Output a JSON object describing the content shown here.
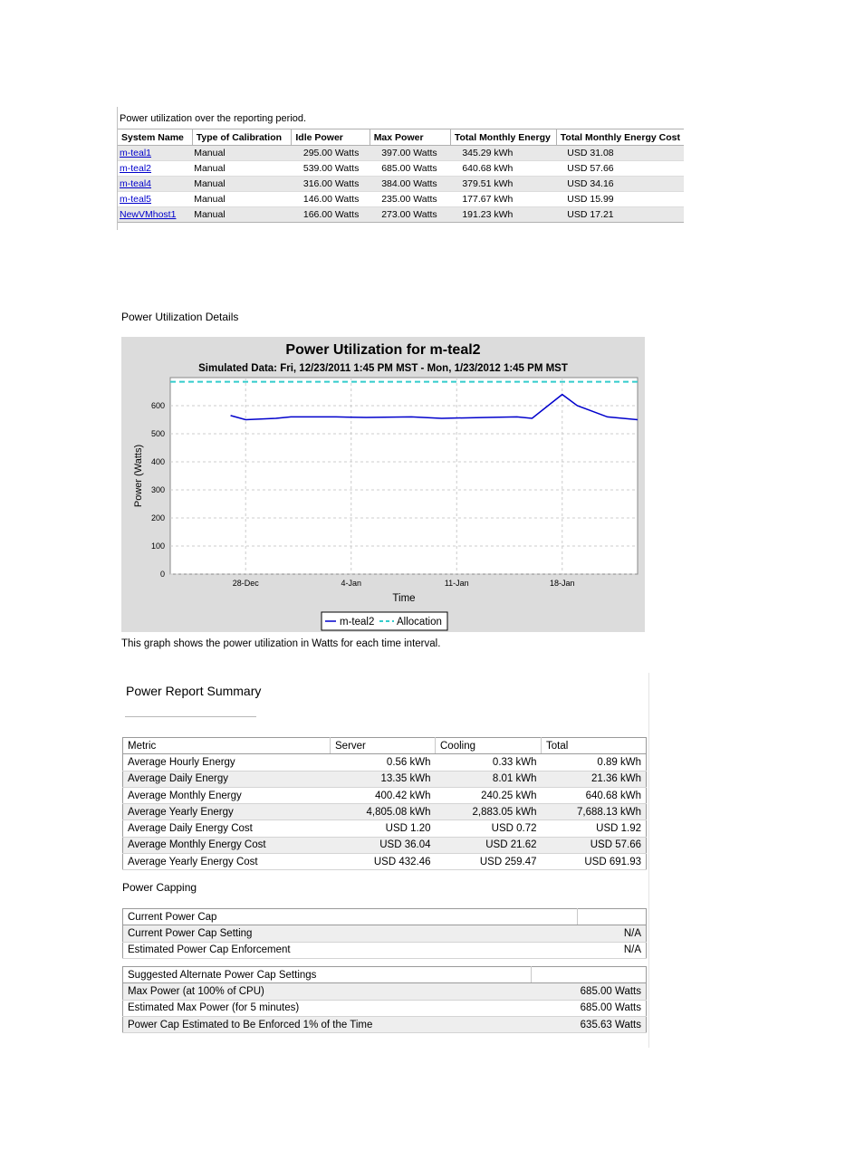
{
  "utilization": {
    "caption": "Power utilization over the reporting period.",
    "headers": [
      "System Name",
      "Type of Calibration",
      "Idle Power",
      "Max Power",
      "Total Monthly Energy",
      "Total Monthly Energy Cost"
    ],
    "rows": [
      [
        "m-teal1",
        "Manual",
        "295.00 Watts",
        "397.00 Watts",
        "345.29 kWh",
        "USD 31.08"
      ],
      [
        "m-teal2",
        "Manual",
        "539.00 Watts",
        "685.00 Watts",
        "640.68 kWh",
        "USD 57.66"
      ],
      [
        "m-teal4",
        "Manual",
        "316.00 Watts",
        "384.00 Watts",
        "379.51 kWh",
        "USD 34.16"
      ],
      [
        "m-teal5",
        "Manual",
        "146.00 Watts",
        "235.00 Watts",
        "177.67 kWh",
        "USD 15.99"
      ],
      [
        "NewVMhost1",
        "Manual",
        "166.00 Watts",
        "273.00 Watts",
        "191.23 kWh",
        "USD 17.21"
      ]
    ]
  },
  "details_title": "Power Utilization Details",
  "chart_data": {
    "type": "line",
    "title": "Power Utilization for m-teal2",
    "subtitle": "Simulated Data: Fri, 12/23/2011 1:45 PM MST - Mon, 1/23/2012 1:45 PM MST",
    "xlabel": "Time",
    "ylabel": "Power (Watts)",
    "xlim": [
      "2011-12-23",
      "2012-01-23"
    ],
    "ylim": [
      0,
      700
    ],
    "x_ticks": [
      "28-Dec",
      "4-Jan",
      "11-Jan",
      "18-Jan"
    ],
    "y_ticks": [
      0,
      100,
      200,
      300,
      400,
      500,
      600
    ],
    "grid": true,
    "legend_position": "bottom-center",
    "series": [
      {
        "name": "m-teal2",
        "color": "#0000cc",
        "x": [
          "2011-12-27",
          "2011-12-28",
          "2011-12-30",
          "2011-12-31",
          "2012-01-03",
          "2012-01-05",
          "2012-01-08",
          "2012-01-10",
          "2012-01-13",
          "2012-01-15",
          "2012-01-16",
          "2012-01-18",
          "2012-01-19",
          "2012-01-21",
          "2012-01-23"
        ],
        "y": [
          565,
          550,
          555,
          560,
          560,
          558,
          560,
          555,
          558,
          560,
          555,
          640,
          600,
          560,
          550
        ]
      },
      {
        "name": "Allocation",
        "color": "#33cccc",
        "x": [
          "2011-12-23",
          "2012-01-23"
        ],
        "y": [
          685,
          685
        ]
      }
    ],
    "annotations": []
  },
  "chart_desc": "This graph shows the power utilization in Watts for each time interval.",
  "summary": {
    "title": "Power Report Summary",
    "headers": [
      "Metric",
      "Server",
      "Cooling",
      "Total"
    ],
    "rows": [
      [
        "Average Hourly Energy",
        "0.56 kWh",
        "0.33 kWh",
        "0.89 kWh"
      ],
      [
        "Average Daily Energy",
        "13.35 kWh",
        "8.01 kWh",
        "21.36 kWh"
      ],
      [
        "Average Monthly Energy",
        "400.42 kWh",
        "240.25 kWh",
        "640.68 kWh"
      ],
      [
        "Average Yearly Energy",
        "4,805.08 kWh",
        "2,883.05 kWh",
        "7,688.13 kWh"
      ],
      [
        "Average Daily Energy Cost",
        "USD 1.20",
        "USD 0.72",
        "USD 1.92"
      ],
      [
        "Average Monthly Energy Cost",
        "USD 36.04",
        "USD 21.62",
        "USD 57.66"
      ],
      [
        "Average Yearly Energy Cost",
        "USD 432.46",
        "USD 259.47",
        "USD 691.93"
      ]
    ]
  },
  "capping": {
    "title": "Power Capping",
    "current_header": "Current Power Cap",
    "current_rows": [
      [
        "Current Power Cap Setting",
        "N/A"
      ],
      [
        "Estimated Power Cap Enforcement",
        "N/A"
      ]
    ],
    "suggested_header": "Suggested Alternate Power Cap Settings",
    "suggested_rows": [
      [
        "Max Power (at 100% of CPU)",
        "685.00 Watts"
      ],
      [
        "Estimated Max Power (for 5 minutes)",
        "685.00 Watts"
      ],
      [
        "Power Cap Estimated to Be Enforced 1% of the Time",
        "635.63 Watts"
      ]
    ]
  }
}
